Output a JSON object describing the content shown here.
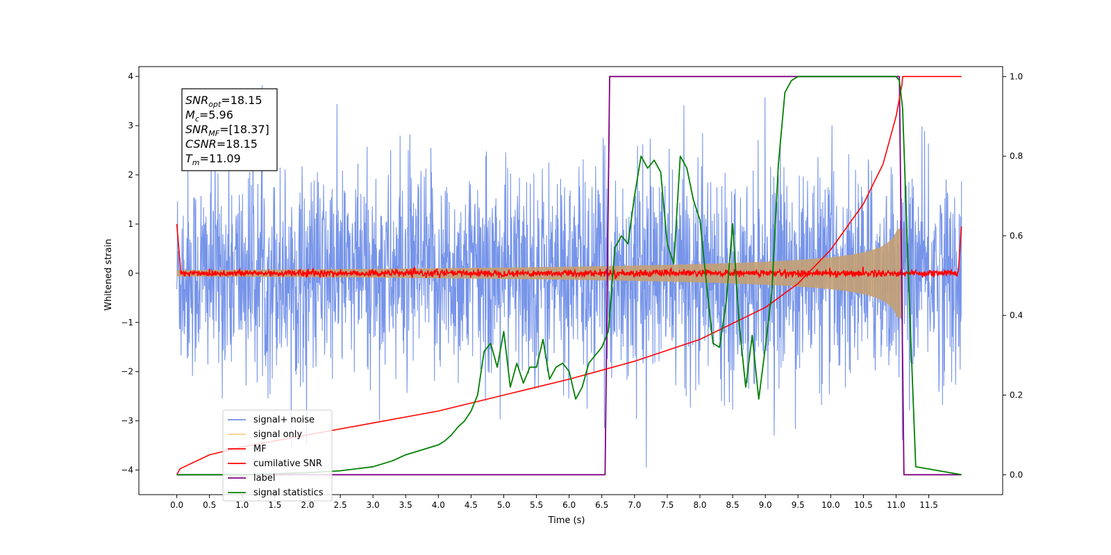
{
  "chart_data": {
    "type": "line",
    "xlabel": "Time (s)",
    "ylabel_left": "Whitened strain",
    "ylabel_right": "",
    "xlim": [
      -0.58,
      12.63
    ],
    "ylim_left": [
      -4.5,
      4.2
    ],
    "ylim_right": [
      -0.05,
      1.025
    ],
    "x_ticks": [
      0.0,
      0.5,
      1.0,
      1.5,
      2.0,
      2.5,
      3.0,
      3.5,
      4.0,
      4.5,
      5.0,
      5.5,
      6.0,
      6.5,
      7.0,
      7.5,
      8.0,
      8.5,
      9.0,
      9.5,
      10.0,
      10.5,
      11.0,
      11.5
    ],
    "x_tick_labels": [
      "0.0",
      "0.5",
      "1.0",
      "1.5",
      "2.0",
      "2.5",
      "3.0",
      "3.5",
      "4.0",
      "4.5",
      "5.0",
      "5.5",
      "6.0",
      "6.5",
      "7.0",
      "7.5",
      "8.0",
      "8.5",
      "9.0",
      "9.5",
      "10.0",
      "10.5",
      "11.0",
      "11.5"
    ],
    "y_ticks_left": [
      -4,
      -3,
      -2,
      -1,
      0,
      1,
      2,
      3,
      4
    ],
    "y_tick_labels_left": [
      "−4",
      "−3",
      "−2",
      "−1",
      "0",
      "1",
      "2",
      "3",
      "4"
    ],
    "y_ticks_right": [
      0.0,
      0.2,
      0.4,
      0.6,
      0.8,
      1.0
    ],
    "y_tick_labels_right": [
      "0.0",
      "0.2",
      "0.4",
      "0.6",
      "0.8",
      "1.0"
    ],
    "x_range": [
      0.0,
      12.0
    ],
    "series": [
      {
        "name": "signal+ noise",
        "color": "#6f8ee8",
        "axis": "left",
        "style": "dense noise, amplitude about ±2.2 with spikes to ±4"
      },
      {
        "name": "signal only",
        "color": "#f5c26b",
        "axis": "left",
        "style": "chirp envelope from about ±0.1 at t=0 to about ±1.1 at t=11.05, ends at 11.1"
      },
      {
        "name": "MF",
        "color": "#ff0000",
        "axis": "left",
        "style": "noise around 0 with amplitude about 0.07, edges rise to 1 at t=0 and t=12"
      },
      {
        "name": "cumilative SNR",
        "color": "#ff0000",
        "axis": "right",
        "x": [
          0.0,
          0.05,
          0.5,
          1.0,
          2.0,
          3.0,
          4.0,
          5.0,
          6.0,
          7.0,
          8.0,
          9.0,
          9.5,
          10.0,
          10.5,
          10.8,
          11.0,
          11.09,
          11.1,
          12.0
        ],
        "y": [
          0.0,
          0.015,
          0.05,
          0.07,
          0.1,
          0.13,
          0.16,
          0.2,
          0.24,
          0.285,
          0.34,
          0.42,
          0.48,
          0.565,
          0.68,
          0.78,
          0.9,
          0.98,
          1.0,
          1.0
        ]
      },
      {
        "name": "label",
        "color": "#800080",
        "axis": "right",
        "x": [
          0.0,
          6.55,
          6.62,
          11.05,
          11.12,
          12.0
        ],
        "y": [
          0.0,
          0.0,
          1.0,
          1.0,
          0.0,
          0.0
        ]
      },
      {
        "name": "signal statistics",
        "color": "#008000",
        "axis": "right",
        "x": [
          0.0,
          1.0,
          2.0,
          2.5,
          3.0,
          3.3,
          3.5,
          3.7,
          3.9,
          4.0,
          4.1,
          4.2,
          4.3,
          4.4,
          4.5,
          4.6,
          4.7,
          4.8,
          4.9,
          5.0,
          5.1,
          5.2,
          5.3,
          5.4,
          5.5,
          5.6,
          5.7,
          5.8,
          5.9,
          6.0,
          6.1,
          6.2,
          6.3,
          6.4,
          6.5,
          6.6,
          6.7,
          6.8,
          6.9,
          7.0,
          7.1,
          7.2,
          7.3,
          7.4,
          7.5,
          7.6,
          7.7,
          7.8,
          7.9,
          8.0,
          8.1,
          8.2,
          8.3,
          8.4,
          8.5,
          8.6,
          8.7,
          8.8,
          8.9,
          9.0,
          9.1,
          9.2,
          9.3,
          9.4,
          9.5,
          10.0,
          10.5,
          11.0,
          11.05,
          11.1,
          11.2,
          11.3,
          12.0
        ],
        "y": [
          0.0,
          0.0,
          0.005,
          0.01,
          0.02,
          0.035,
          0.05,
          0.06,
          0.07,
          0.075,
          0.085,
          0.1,
          0.12,
          0.135,
          0.16,
          0.2,
          0.31,
          0.33,
          0.27,
          0.36,
          0.22,
          0.28,
          0.23,
          0.27,
          0.27,
          0.34,
          0.24,
          0.27,
          0.28,
          0.26,
          0.19,
          0.22,
          0.28,
          0.3,
          0.32,
          0.36,
          0.57,
          0.6,
          0.58,
          0.7,
          0.8,
          0.77,
          0.79,
          0.76,
          0.58,
          0.53,
          0.8,
          0.77,
          0.69,
          0.64,
          0.48,
          0.33,
          0.32,
          0.43,
          0.63,
          0.38,
          0.22,
          0.35,
          0.19,
          0.32,
          0.46,
          0.78,
          0.96,
          0.99,
          1.0,
          1.0,
          1.0,
          1.0,
          0.99,
          0.92,
          0.45,
          0.02,
          0.0
        ]
      }
    ],
    "stats_box": [
      {
        "var": "SNR",
        "sub": "opt",
        "value": "=18.15"
      },
      {
        "var": "M",
        "sub": "c",
        "value": "=5.96"
      },
      {
        "var": "SNR",
        "sub": "MF",
        "value": "=[18.37]"
      },
      {
        "var": "CSNR",
        "sub": "",
        "value": "=18.15"
      },
      {
        "var": "T",
        "sub": "m",
        "value": "=11.09"
      }
    ],
    "legend": {
      "placement": "lower-left",
      "entries": [
        {
          "label": "signal+ noise",
          "color": "#6f8ee8"
        },
        {
          "label": "signal only",
          "color": "#f5c26b"
        },
        {
          "label": "MF",
          "color": "#ff0000"
        },
        {
          "label": "cumilative SNR",
          "color": "#ff0000"
        },
        {
          "label": "label",
          "color": "#800080"
        },
        {
          "label": "signal statistics",
          "color": "#008000"
        }
      ]
    },
    "grid": false
  }
}
